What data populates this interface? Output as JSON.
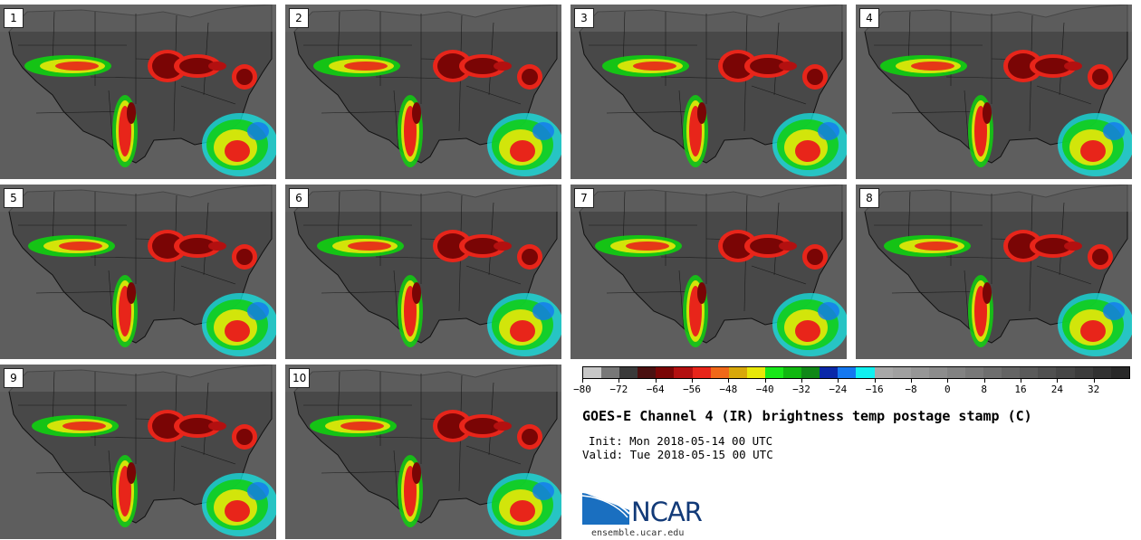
{
  "panels": [
    "1",
    "2",
    "3",
    "4",
    "5",
    "6",
    "7",
    "8",
    "9",
    "10"
  ],
  "colorbar": {
    "colors": [
      "#c8c8c8",
      "#787878",
      "#3a3a3a",
      "#4a1010",
      "#7a0505",
      "#b31010",
      "#e8251a",
      "#f06818",
      "#d8a80a",
      "#e8e808",
      "#18e818",
      "#10b810",
      "#108818",
      "#0a28a8",
      "#1478f0",
      "#10f0f0",
      "#a8a8a8",
      "#a0a0a0",
      "#969696",
      "#8c8c8c",
      "#828282",
      "#787878",
      "#6e6e6e",
      "#646464",
      "#5a5a5a",
      "#505050",
      "#464646",
      "#3c3c3c",
      "#323232",
      "#282828"
    ],
    "ticks": [
      "-80",
      "-72",
      "-64",
      "-56",
      "-48",
      "-40",
      "-32",
      "-24",
      "-16",
      "-8",
      "0",
      "8",
      "16",
      "24",
      "32"
    ]
  },
  "title": "GOES-E Channel 4 (IR) brightness temp postage stamp (C)",
  "init": "Init: Mon 2018-05-14 00 UTC",
  "valid": "Valid: Tue 2018-05-15 00 UTC",
  "logo_text": "NCAR",
  "site": "ensemble.ucar.edu"
}
